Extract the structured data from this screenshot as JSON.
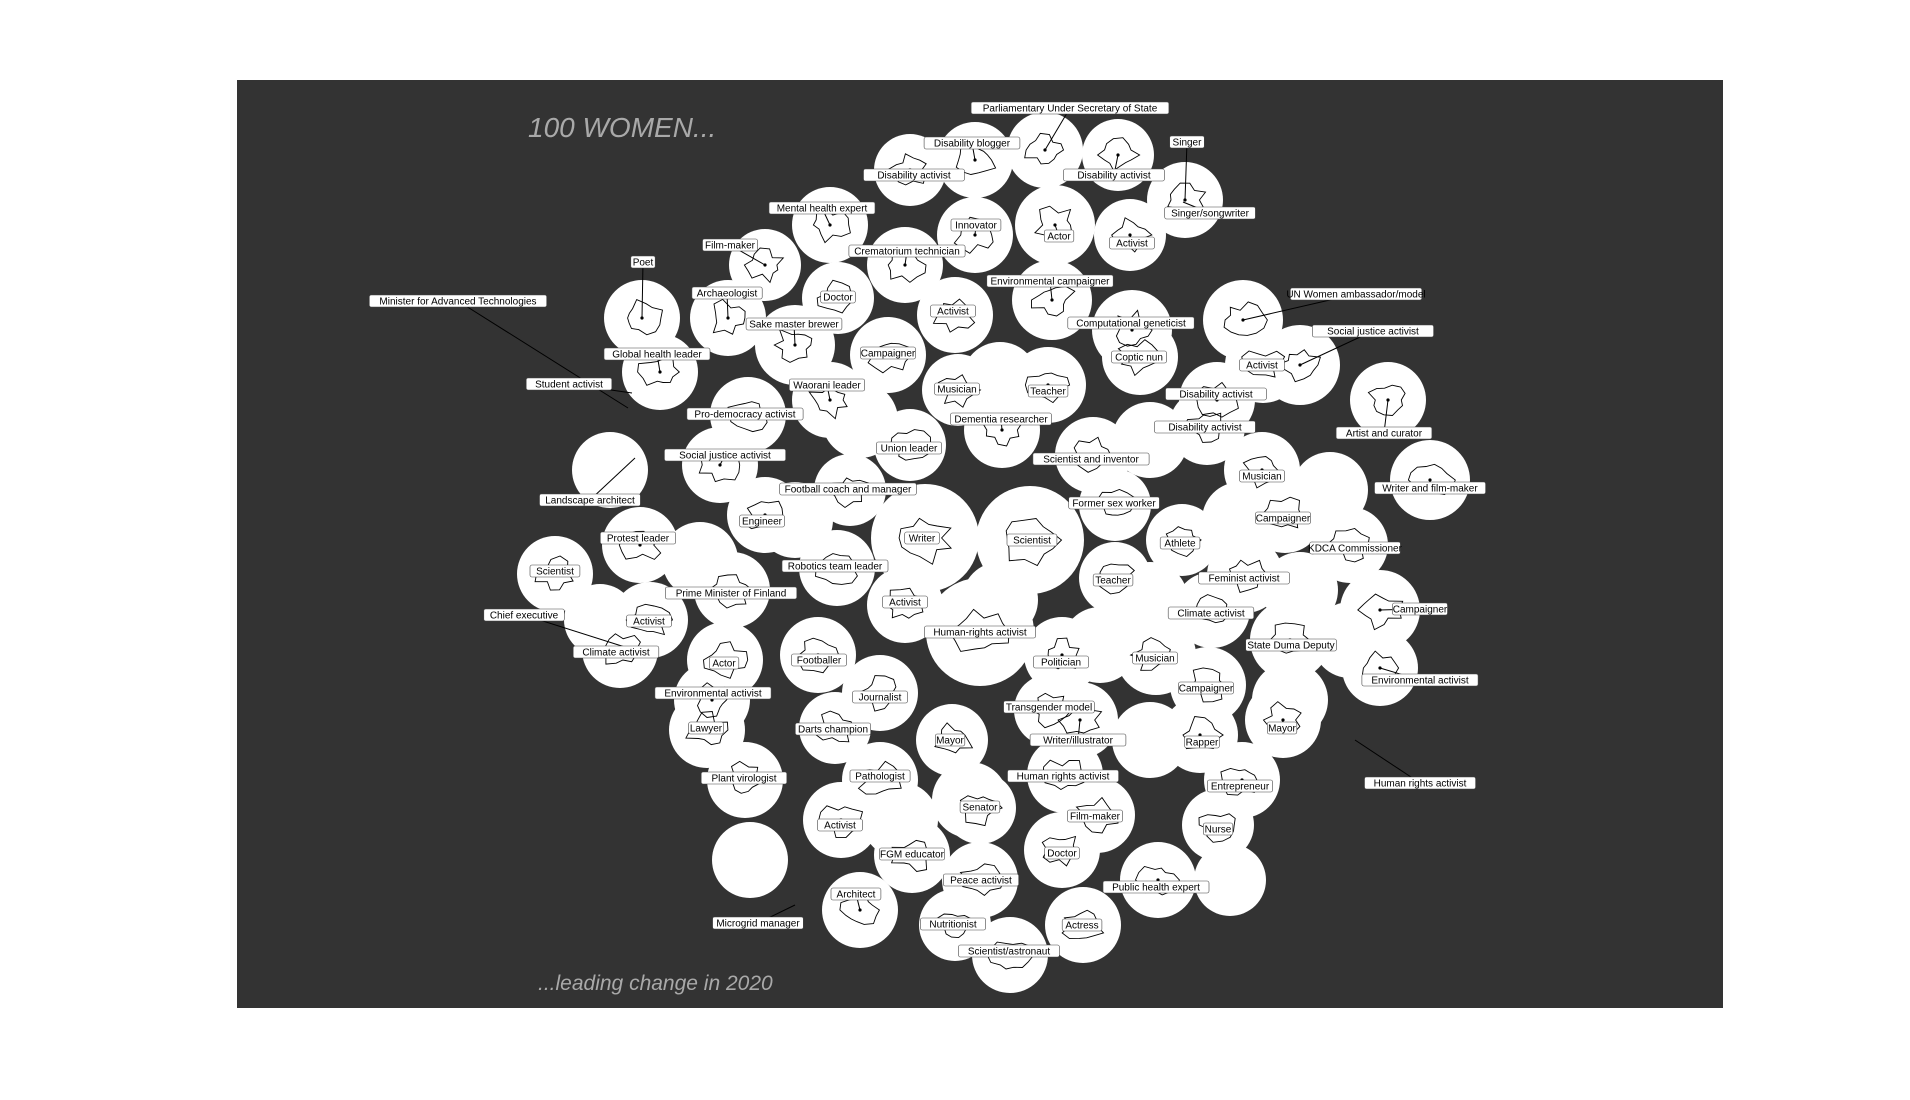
{
  "chart_data": {
    "type": "bubble",
    "title": "100 WOMEN...",
    "subtitle": "...leading change in 2020",
    "colors": {
      "panel": "#333333",
      "bubble": "#ffffff",
      "title": "#a9a9a9"
    },
    "grid": false,
    "legend": "none",
    "labels": [
      "Parliamentary Under Secretary of State",
      "Disability blogger",
      "Singer",
      "Disability activist",
      "Disability activist",
      "Singer/songwriter",
      "Mental health expert",
      "Innovator",
      "Actor",
      "Film-maker",
      "Activist",
      "Crematorium technician",
      "Poet",
      "Archaeologist",
      "Doctor",
      "Environmental campaigner",
      "UN Women ambassador/model",
      "Minister for Advanced Technologies",
      "Computational geneticist",
      "Social justice activist",
      "Sake master brewer",
      "Activist",
      "Campaigner",
      "Coptic nun",
      "Global health leader",
      "Activist",
      "Student activist",
      "Waorani leader",
      "Musician",
      "Teacher",
      "Disability activist",
      "Pro-democracy activist",
      "Dementia researcher",
      "Artist and curator",
      "Disability activist",
      "Union leader",
      "Social justice activist",
      "Scientist and inventor",
      "Musician",
      "Football coach and manager",
      "Writer and film-maker",
      "Landscape architect",
      "Former sex worker",
      "Engineer",
      "Campaigner",
      "Protest leader",
      "Writer",
      "Scientist",
      "Athlete",
      "KDCA Commissioner",
      "Robotics team leader",
      "Scientist",
      "Teacher",
      "Feminist activist",
      "Prime Minister of Finland",
      "Campaigner",
      "Activist",
      "Climate activist",
      "Chief executive",
      "Activist",
      "Human-rights activist",
      "State Duma Deputy",
      "Climate activist",
      "Politician",
      "Musician",
      "Actor",
      "Footballer",
      "Environmental activist",
      "Campaigner",
      "Environmental activist",
      "Journalist",
      "Transgender model",
      "Lawyer",
      "Darts champion",
      "Mayor",
      "Writer/illustrator",
      "Mayor",
      "Rapper",
      "Plant virologist",
      "Pathologist",
      "Human rights activist",
      "Entrepreneur",
      "Human rights activist",
      "Senator",
      "Film-maker",
      "Activist",
      "Nurse",
      "FGM educator",
      "Doctor",
      "Peace activist",
      "Public health expert",
      "Architect",
      "Microgrid manager",
      "Nutritionist",
      "Actress",
      "Scientist/astronaut"
    ]
  }
}
